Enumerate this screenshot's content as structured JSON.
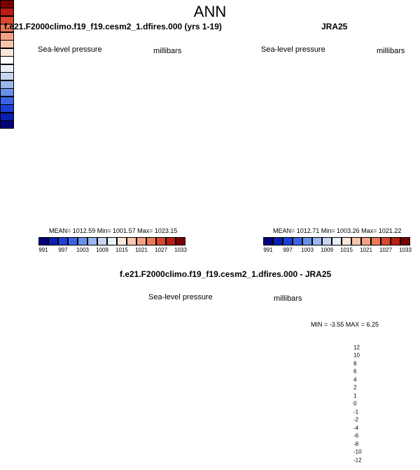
{
  "title": "ANN",
  "panels": [
    {
      "title": "f.e21.F2000climo.f19_f19.cesm2_1.dfires.000 (yrs 1-19)",
      "left_label": "Sea-level pressure",
      "right_label": "millibars",
      "stats": "MEAN= 1012.59  Min= 1001.57  Max= 1023.15",
      "mean": 1012.59,
      "min": 1001.57,
      "max": 1023.15
    },
    {
      "title": "JRA25",
      "left_label": "Sea-level pressure",
      "right_label": "millibars",
      "stats": "MEAN= 1012.71  Min= 1003.26  Max= 1021.22",
      "mean": 1012.71,
      "min": 1003.26,
      "max": 1021.22
    },
    {
      "title": "f.e21.F2000climo.f19_f19.cesm2_1.dfires.000 - JRA25",
      "left_label": "Sea-level pressure",
      "right_label": "millibars",
      "stats": "MIN =  -3.55 MAX =   6.25",
      "min": -3.55,
      "max": 6.25
    }
  ],
  "colorbar_abs": {
    "colors": [
      "#06007c",
      "#0a1fb0",
      "#1e3fd6",
      "#3d64e6",
      "#6a8fe8",
      "#9cb6ee",
      "#c6d6f2",
      "#e8eff8",
      "#fbe6da",
      "#f7c6ad",
      "#f2a383",
      "#ea7a57",
      "#d9482e",
      "#b91d14",
      "#7a0000"
    ],
    "tick_labels": [
      "991",
      "997",
      "1003",
      "1009",
      "1015",
      "1021",
      "1027",
      "1033"
    ]
  },
  "colorbar_diff": {
    "colors": [
      "#7a0000",
      "#b91d14",
      "#d9482e",
      "#ea7a57",
      "#f2a383",
      "#f7c6ad",
      "#fbe6da",
      "#ffffff",
      "#e8eff8",
      "#c6d6f2",
      "#9cb6ee",
      "#6a8fe8",
      "#3d64e6",
      "#1e3fd6",
      "#0a1fb0",
      "#06007c"
    ],
    "tick_labels": [
      "12",
      "10",
      "8",
      "6",
      "4",
      "2",
      "1",
      "0",
      "-1",
      "-2",
      "-4",
      "-6",
      "-8",
      "-10",
      "-12"
    ]
  },
  "map_colors": {
    "ocean_base": "#fbe6da",
    "high": "#f2a383",
    "higher": "#ea7a57",
    "low": "#9cb6ee",
    "lower": "#6a8fe8",
    "lowest": "#3d64e6",
    "diff_base": "#c6d6f2",
    "diff_low": "#9cb6ee",
    "diff_lower": "#6a8fe8",
    "diff_high": "#f7c6ad",
    "diff_higher": "#ea7a57",
    "neutral": "#e8eff8"
  }
}
